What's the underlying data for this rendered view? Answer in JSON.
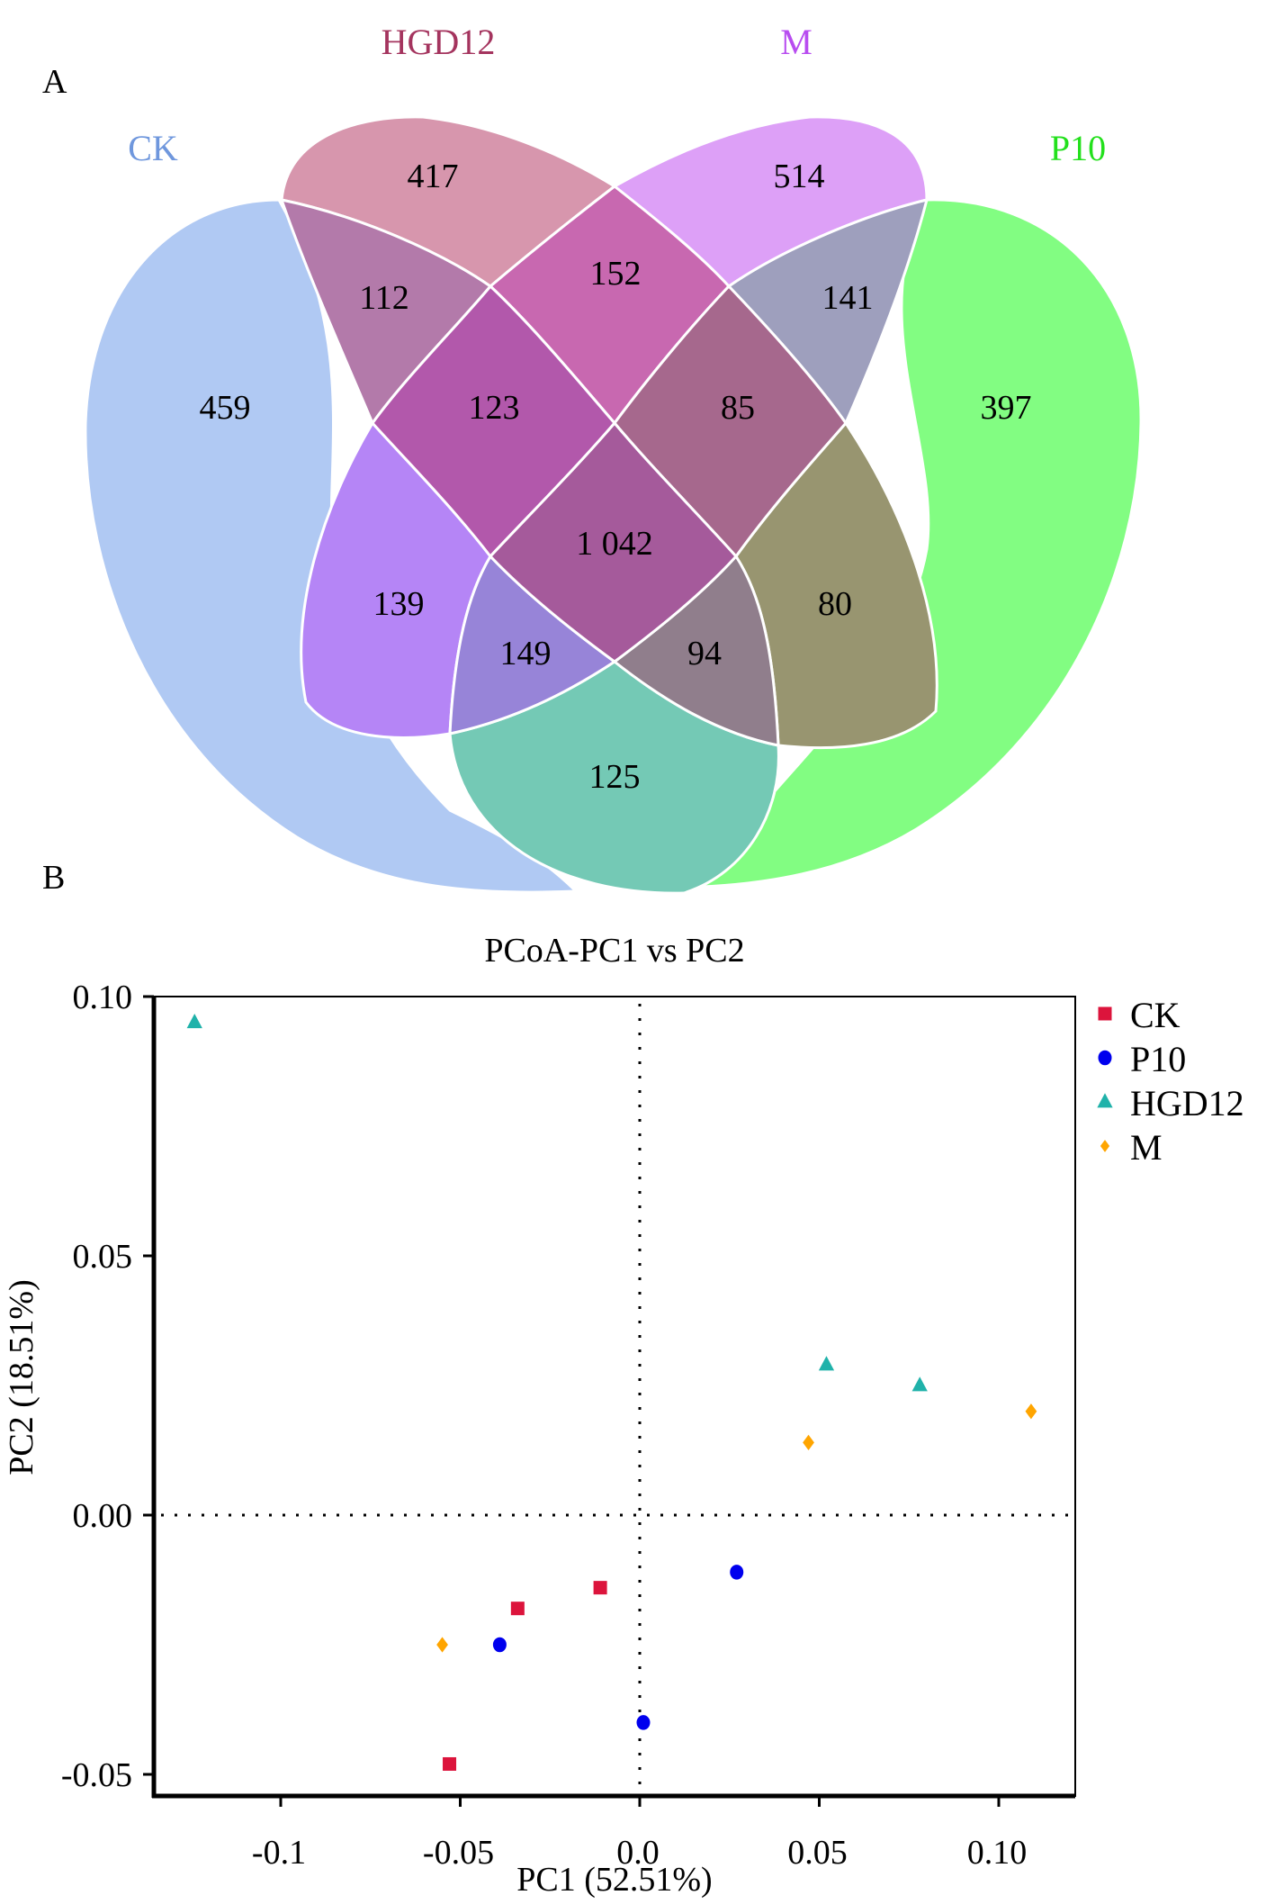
{
  "figure": {
    "panel_a_label": "A",
    "panel_b_label": "B"
  },
  "chart_data": [
    {
      "type": "venn",
      "panel": "A",
      "sets": [
        {
          "id": "CK",
          "label": "CK",
          "color": "#9dbcf0",
          "label_color": "#6f97dd"
        },
        {
          "id": "HGD12",
          "label": "HGD12",
          "color": "#c9788f",
          "label_color": "#a4345e"
        },
        {
          "id": "M",
          "label": "M",
          "color": "#d089f5",
          "label_color": "#b84cf0"
        },
        {
          "id": "P10",
          "label": "P10",
          "color": "#6ffb6a",
          "label_color": "#23e01c"
        }
      ],
      "regions": [
        {
          "sets": [
            "CK"
          ],
          "value": "459",
          "color": "#b0c9f3"
        },
        {
          "sets": [
            "HGD12"
          ],
          "value": "417",
          "color": "#d796ad"
        },
        {
          "sets": [
            "M"
          ],
          "value": "514",
          "color": "#dda0f7"
        },
        {
          "sets": [
            "P10"
          ],
          "value": "397",
          "color": "#82fd82"
        },
        {
          "sets": [
            "CK",
            "HGD12"
          ],
          "value": "112",
          "color": "#b37aaa"
        },
        {
          "sets": [
            "HGD12",
            "M"
          ],
          "value": "152",
          "color": "#c868b0"
        },
        {
          "sets": [
            "M",
            "P10"
          ],
          "value": "141",
          "color": "#9e9fbd"
        },
        {
          "sets": [
            "CK",
            "M"
          ],
          "value": "139",
          "color": "#b585f6"
        },
        {
          "sets": [
            "HGD12",
            "P10"
          ],
          "value": "80",
          "color": "#989570"
        },
        {
          "sets": [
            "CK",
            "P10"
          ],
          "value": "125",
          "color": "#74c9b5"
        },
        {
          "sets": [
            "CK",
            "HGD12",
            "M"
          ],
          "value": "123",
          "color": "#b258ab"
        },
        {
          "sets": [
            "HGD12",
            "M",
            "P10"
          ],
          "value": "85",
          "color": "#a6688d"
        },
        {
          "sets": [
            "CK",
            "M",
            "P10"
          ],
          "value": "149",
          "color": "#9784d8"
        },
        {
          "sets": [
            "CK",
            "HGD12",
            "P10"
          ],
          "value": "94",
          "color": "#907e8c"
        },
        {
          "sets": [
            "CK",
            "HGD12",
            "M",
            "P10"
          ],
          "value": "1 042",
          "color": "#a55a9b"
        }
      ]
    },
    {
      "type": "scatter",
      "panel": "B",
      "title": "PCoA-PC1 vs PC2",
      "xlabel": "PC1 (52.51%)",
      "ylabel": "PC2 (18.51%)",
      "xlim": [
        -0.135,
        0.12
      ],
      "ylim": [
        -0.053,
        0.1
      ],
      "xticks": [
        {
          "value": -0.1,
          "label": "-0.1"
        },
        {
          "value": -0.05,
          "label": "-0.05"
        },
        {
          "value": 0.0,
          "label": "0.0"
        },
        {
          "value": 0.05,
          "label": "0.05"
        },
        {
          "value": 0.1,
          "label": "0.10"
        }
      ],
      "yticks": [
        {
          "value": 0.1,
          "label": "0.10"
        },
        {
          "value": 0.05,
          "label": "0.05"
        },
        {
          "value": 0.0,
          "label": "0.00"
        },
        {
          "value": -0.05,
          "label": "-0.05"
        }
      ],
      "reference_lines": {
        "x": 0,
        "y": 0,
        "style": "dotted"
      },
      "grid": false,
      "legend_position": "right",
      "series": [
        {
          "name": "CK",
          "marker": "square",
          "color": "#dc143c",
          "points": [
            [
              -0.011,
              -0.014
            ],
            [
              -0.034,
              -0.018
            ],
            [
              -0.053,
              -0.048
            ]
          ]
        },
        {
          "name": "P10",
          "marker": "circle",
          "color": "#0000ee",
          "points": [
            [
              0.027,
              -0.011
            ],
            [
              -0.039,
              -0.025
            ],
            [
              0.001,
              -0.04
            ]
          ]
        },
        {
          "name": "HGD12",
          "marker": "triangle",
          "color": "#20b2aa",
          "points": [
            [
              -0.124,
              0.095
            ],
            [
              0.052,
              0.029
            ],
            [
              0.078,
              0.025
            ]
          ]
        },
        {
          "name": "M",
          "marker": "diamond",
          "color": "#ffa500",
          "points": [
            [
              0.047,
              0.014
            ],
            [
              0.109,
              0.02
            ],
            [
              -0.055,
              -0.025
            ]
          ]
        }
      ]
    }
  ]
}
